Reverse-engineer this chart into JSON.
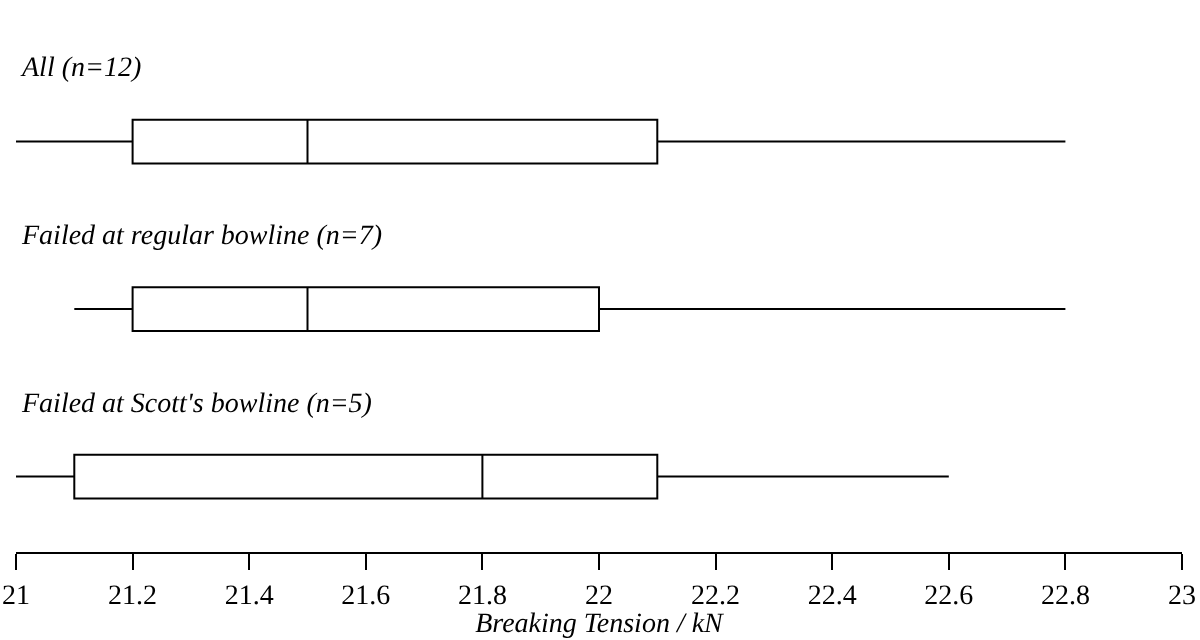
{
  "chart_data": {
    "type": "box",
    "orientation": "horizontal",
    "categories": [
      "All (n=12)",
      "Failed at regular bowline (n=7)",
      "Failed at Scott's bowline (n=5)"
    ],
    "boxes": [
      {
        "low": 21.0,
        "q1": 21.2,
        "median": 21.5,
        "q3": 22.1,
        "high": 22.8
      },
      {
        "low": 21.1,
        "q1": 21.2,
        "median": 21.5,
        "q3": 22.0,
        "high": 22.8
      },
      {
        "low": 21.0,
        "q1": 21.1,
        "median": 21.8,
        "q3": 22.1,
        "high": 22.6
      }
    ],
    "color": "#000000",
    "xlabel": "Breaking Tension / kN",
    "xlim": [
      21,
      23
    ],
    "xticks": [
      21,
      21.2,
      21.4,
      21.6,
      21.8,
      22,
      22.2,
      22.4,
      22.6,
      22.8,
      23
    ],
    "grid": false,
    "legend": false,
    "tick_labels": "x"
  }
}
